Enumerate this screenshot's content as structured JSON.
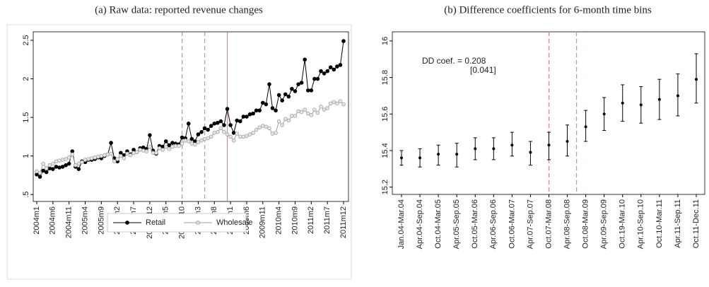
{
  "chart_data": [
    {
      "type": "line",
      "title": "(a) Raw data: reported revenue changes",
      "categories": [
        "2004m1",
        null,
        null,
        null,
        null,
        "2004m6",
        null,
        null,
        null,
        null,
        "2004m11",
        null,
        null,
        null,
        null,
        "2005m4",
        null,
        null,
        null,
        null,
        "2005m9",
        null,
        null,
        null,
        null,
        "2006m2",
        null,
        null,
        null,
        null,
        "2006m7",
        null,
        null,
        null,
        null,
        "2006m12",
        null,
        null,
        null,
        null,
        "2007m5",
        null,
        null,
        null,
        null,
        "2007m10",
        null,
        null,
        null,
        null,
        "2008m3",
        null,
        null,
        null,
        null,
        "2008m8",
        null,
        null,
        null,
        null,
        "2009m1",
        null,
        null,
        null,
        null,
        "2009m6",
        null,
        null,
        null,
        null,
        "2009m11",
        null,
        null,
        null,
        null,
        "2010m4",
        null,
        null,
        null,
        null,
        "2010m9",
        null,
        null,
        null,
        null,
        "2011m2",
        null,
        null,
        null,
        null,
        "2011m7",
        null,
        null,
        null,
        null,
        "2011m12"
      ],
      "series": [
        {
          "name": "Retail",
          "color": "#000000",
          "values": [
            0.76,
            0.73,
            0.81,
            0.79,
            0.84,
            0.83,
            0.86,
            0.85,
            0.86,
            0.88,
            0.9,
            1.06,
            0.86,
            0.83,
            0.93,
            0.92,
            0.95,
            0.95,
            0.96,
            0.98,
            0.97,
            1.0,
            1.02,
            1.17,
            0.97,
            0.93,
            1.04,
            1.01,
            1.06,
            1.02,
            1.08,
            1.05,
            1.1,
            1.11,
            1.09,
            1.27,
            1.07,
            1.03,
            1.13,
            1.12,
            1.19,
            1.14,
            1.17,
            1.16,
            1.15,
            1.24,
            1.23,
            1.42,
            1.22,
            1.19,
            1.28,
            1.31,
            1.36,
            1.34,
            1.39,
            1.42,
            1.43,
            1.45,
            1.4,
            1.61,
            1.4,
            1.3,
            1.46,
            1.45,
            1.51,
            1.51,
            1.54,
            1.55,
            1.59,
            1.59,
            1.69,
            1.67,
            1.93,
            1.62,
            1.59,
            1.79,
            1.72,
            1.8,
            1.77,
            1.87,
            1.84,
            1.93,
            1.95,
            2.25,
            1.85,
            1.85,
            2.0,
            2.0,
            2.1,
            2.07,
            2.1,
            2.15,
            2.12,
            2.16,
            2.18,
            2.49
          ]
        },
        {
          "name": "Wholesale",
          "color": "#a0a0a0",
          "values": [
            0.8,
            0.78,
            0.9,
            0.84,
            0.88,
            0.9,
            0.93,
            0.94,
            0.95,
            0.96,
            0.98,
            1.02,
            0.88,
            0.9,
            0.92,
            0.95,
            0.96,
            0.97,
            0.98,
            0.99,
            1.0,
            1.01,
            1.02,
            1.03,
            0.93,
            0.96,
            1.0,
            0.97,
            1.03,
            1.01,
            1.04,
            1.05,
            1.08,
            1.07,
            1.06,
            1.12,
            1.04,
            1.04,
            1.1,
            1.08,
            1.12,
            1.09,
            1.12,
            1.13,
            1.13,
            1.16,
            1.2,
            1.19,
            1.16,
            1.15,
            1.18,
            1.2,
            1.22,
            1.23,
            1.25,
            1.3,
            1.31,
            1.36,
            1.31,
            1.28,
            1.25,
            1.2,
            1.29,
            1.25,
            1.25,
            1.26,
            1.28,
            1.3,
            1.34,
            1.37,
            1.39,
            1.38,
            1.36,
            1.29,
            1.3,
            1.45,
            1.4,
            1.48,
            1.46,
            1.52,
            1.52,
            1.58,
            1.57,
            1.6,
            1.55,
            1.53,
            1.6,
            1.56,
            1.64,
            1.6,
            1.62,
            1.68,
            1.7,
            1.68,
            1.71,
            1.67
          ]
        }
      ],
      "ylim": [
        0.41,
        2.61
      ],
      "yticks": [
        {
          "value": 0.5,
          "label": ".5"
        },
        1,
        1.5,
        2,
        2.5
      ],
      "vlines": [
        {
          "x": 45,
          "style": "dashed",
          "color": "#f08080"
        },
        {
          "x": 52,
          "style": "dashed",
          "color": "#f08080"
        },
        {
          "x": 59,
          "style": "solid",
          "color": "#f08080"
        }
      ],
      "grid": false,
      "legend": "bottom"
    },
    {
      "type": "errorbar",
      "title": "(b) Difference coefficients for 6-month time bins",
      "categories": [
        "Jan.04-Mar.04",
        "Apr.04-Sep.04",
        "Oct.04-Mar.05",
        "Apr.05-Sep.05",
        "Oct.05-Mar.06",
        "Apr.06-Sep.06",
        "Oct.06-Mar.07",
        "Apr.07-Sep.07",
        "Oct.07-Mar.08",
        "Apr.08-Sep.08",
        "Oct.08-Mar.09",
        "Apr.09-Sep.09",
        "Oct.19-Mar.10",
        "Apr.10-Sep.10",
        "Oct.10-Mar.11",
        "Apr.11-Sep.11",
        "Oct.11-Dec.11"
      ],
      "values": [
        15.36,
        15.36,
        15.38,
        15.38,
        15.41,
        15.41,
        15.43,
        15.39,
        15.43,
        15.45,
        15.53,
        15.6,
        15.66,
        15.65,
        15.68,
        15.7,
        15.79
      ],
      "lower": [
        15.32,
        15.31,
        15.32,
        15.31,
        15.35,
        15.35,
        15.37,
        15.32,
        15.35,
        15.37,
        15.45,
        15.51,
        15.56,
        15.55,
        15.57,
        15.59,
        15.66
      ],
      "upper": [
        15.4,
        15.41,
        15.43,
        15.44,
        15.47,
        15.47,
        15.5,
        15.45,
        15.5,
        15.54,
        15.62,
        15.69,
        15.76,
        15.75,
        15.79,
        15.82,
        15.93
      ],
      "color": "#000000",
      "ylim": [
        15.16,
        16.05
      ],
      "yticks": [
        15.2,
        15.4,
        15.6,
        15.8,
        16
      ],
      "vlines": [
        {
          "x": 8,
          "style": "dashed",
          "color": "#f08080"
        },
        {
          "x": 9.5,
          "style": "dashed",
          "color": "#f08080"
        }
      ],
      "annotations": [
        "DD coef. = 0.208",
        "[0.041]"
      ],
      "grid": false
    }
  ]
}
